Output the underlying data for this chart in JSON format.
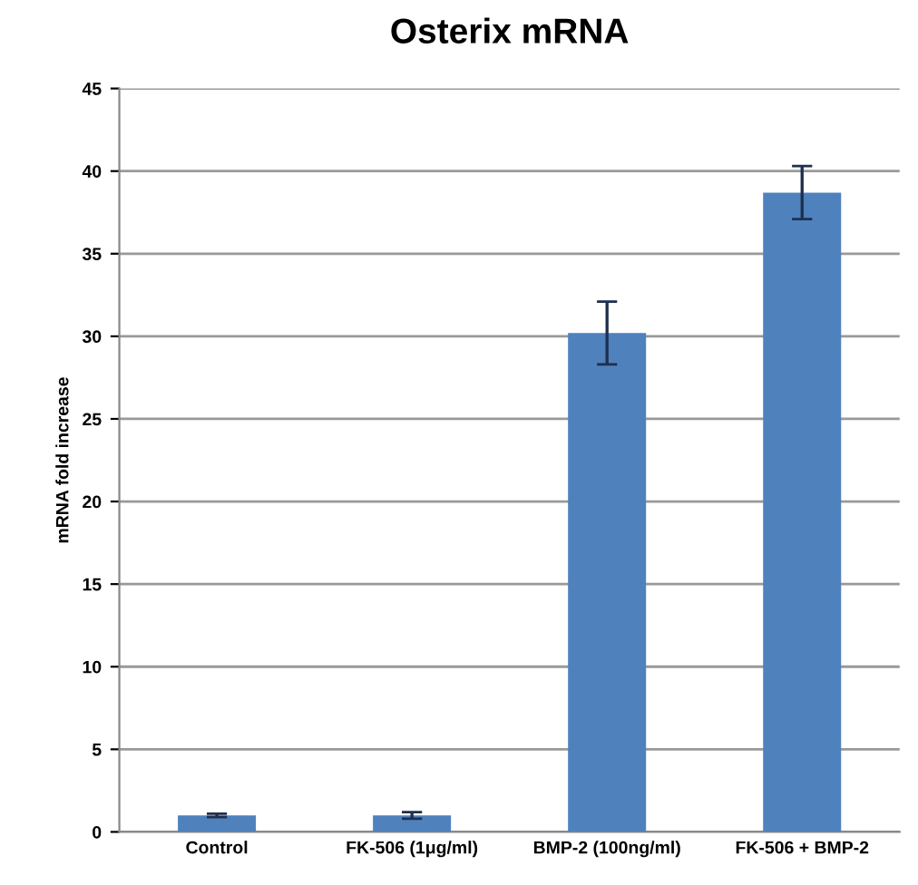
{
  "chart_data": {
    "type": "bar",
    "title": "Osterix mRNA",
    "ylabel": "mRNA fold increase",
    "categories": [
      "Control",
      "FK-506 (1μg/ml)",
      "BMP-2 (100ng/ml)",
      "FK-506 + BMP-2"
    ],
    "values": [
      1.0,
      1.0,
      30.2,
      38.7
    ],
    "errors": [
      0.1,
      0.2,
      1.9,
      1.6
    ],
    "color": "#4f81bd",
    "ylim": [
      0,
      45
    ],
    "yticks": [
      0,
      5,
      10,
      15,
      20,
      25,
      30,
      35,
      40,
      45
    ],
    "grid": "y"
  }
}
